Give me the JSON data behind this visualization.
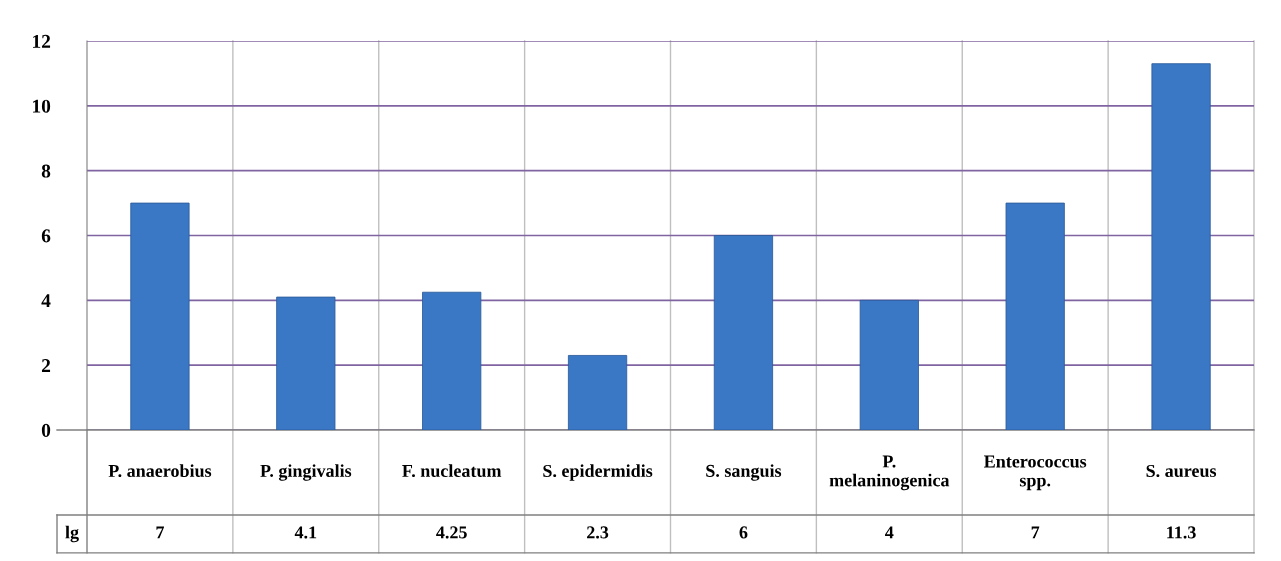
{
  "chart_data": {
    "type": "bar",
    "categories": [
      "P. anaerobius",
      "P. gingivalis",
      "F. nucleatum",
      "S. epidermidis",
      "S. sanguis",
      "P. melaninogenica",
      "Enterococcus spp.",
      "S. aureus"
    ],
    "series": [
      {
        "name": "lg",
        "color": "#3a78c6",
        "values": [
          7,
          4.1,
          4.25,
          2.3,
          6,
          4,
          7,
          11.3
        ]
      }
    ],
    "ylim": [
      0,
      12
    ],
    "yticks": [
      0,
      2,
      4,
      6,
      8,
      10,
      12
    ],
    "grid": "y",
    "data_labels": true
  }
}
